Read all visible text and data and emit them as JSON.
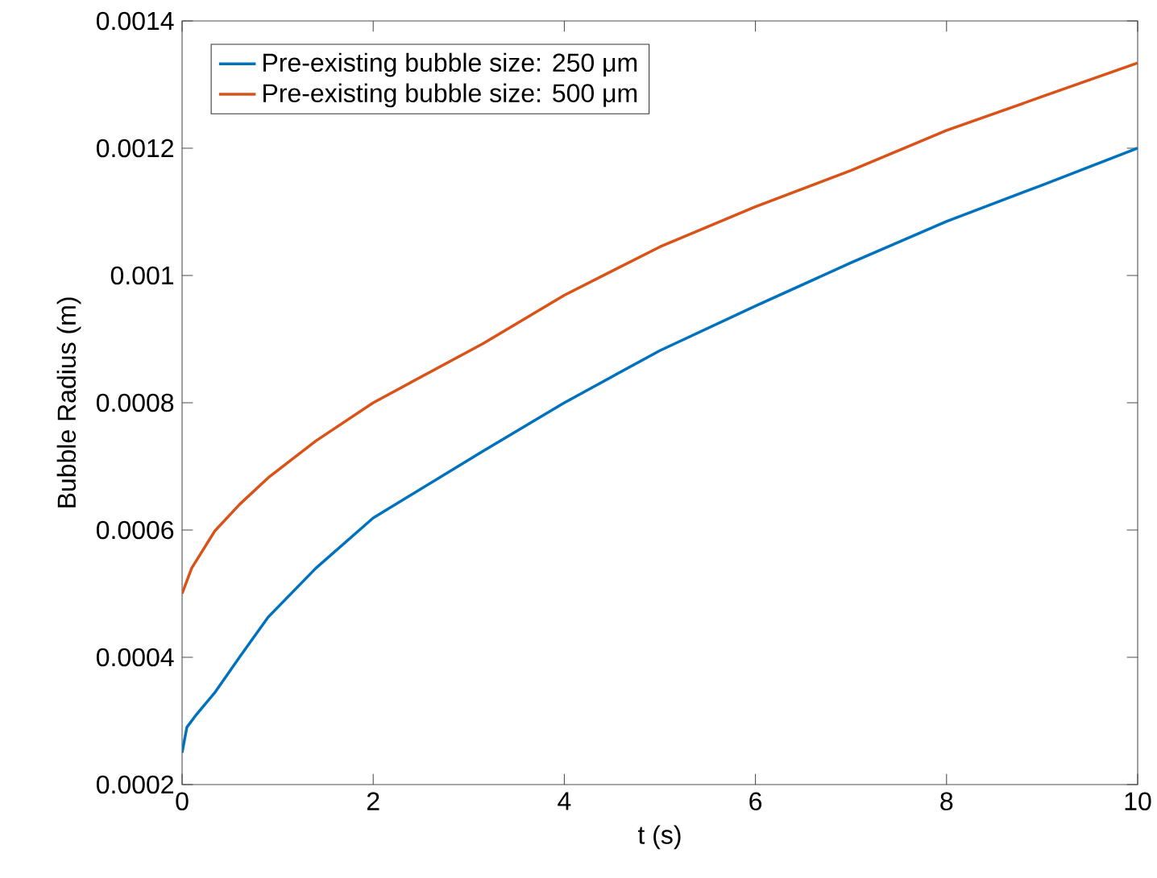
{
  "chart_data": {
    "type": "line",
    "xlabel": "t (s)",
    "ylabel": "Bubble Radius (m)",
    "xlim": [
      0,
      10
    ],
    "ylim": [
      0.0002,
      0.0014
    ],
    "xticks": [
      0,
      2,
      4,
      6,
      8,
      10
    ],
    "yticks": [
      0.0002,
      0.0004,
      0.0006,
      0.0008,
      0.001,
      0.0012,
      0.0014
    ],
    "grid": false,
    "legend": "top left",
    "line_style": "solid",
    "marker": "none",
    "series": [
      {
        "name": "Pre-existing bubble size: 250 μm",
        "color": "#0072bd",
        "x": [
          0,
          0.05,
          0.15,
          0.34,
          0.6,
          0.9,
          1.4,
          2,
          3.15,
          4,
          5,
          6,
          7,
          8,
          9,
          10
        ],
        "values": [
          0.00025,
          0.00029,
          0.00031,
          0.000344,
          0.0004,
          0.000463,
          0.00054,
          0.000619,
          0.000724,
          0.0008,
          0.000882,
          0.000952,
          0.00102,
          0.001085,
          0.001142,
          0.0012
        ]
      },
      {
        "name": "Pre-existing bubble size: 500 μm",
        "color": "#d95319",
        "x": [
          0,
          0.1,
          0.34,
          0.6,
          0.9,
          1.4,
          2,
          3.15,
          4,
          5,
          6,
          7,
          8,
          9,
          10
        ],
        "values": [
          0.0005,
          0.00054,
          0.000598,
          0.00064,
          0.000682,
          0.00074,
          0.0008,
          0.000893,
          0.000969,
          0.001045,
          0.001108,
          0.001165,
          0.001228,
          0.001281,
          0.001334
        ]
      }
    ]
  }
}
